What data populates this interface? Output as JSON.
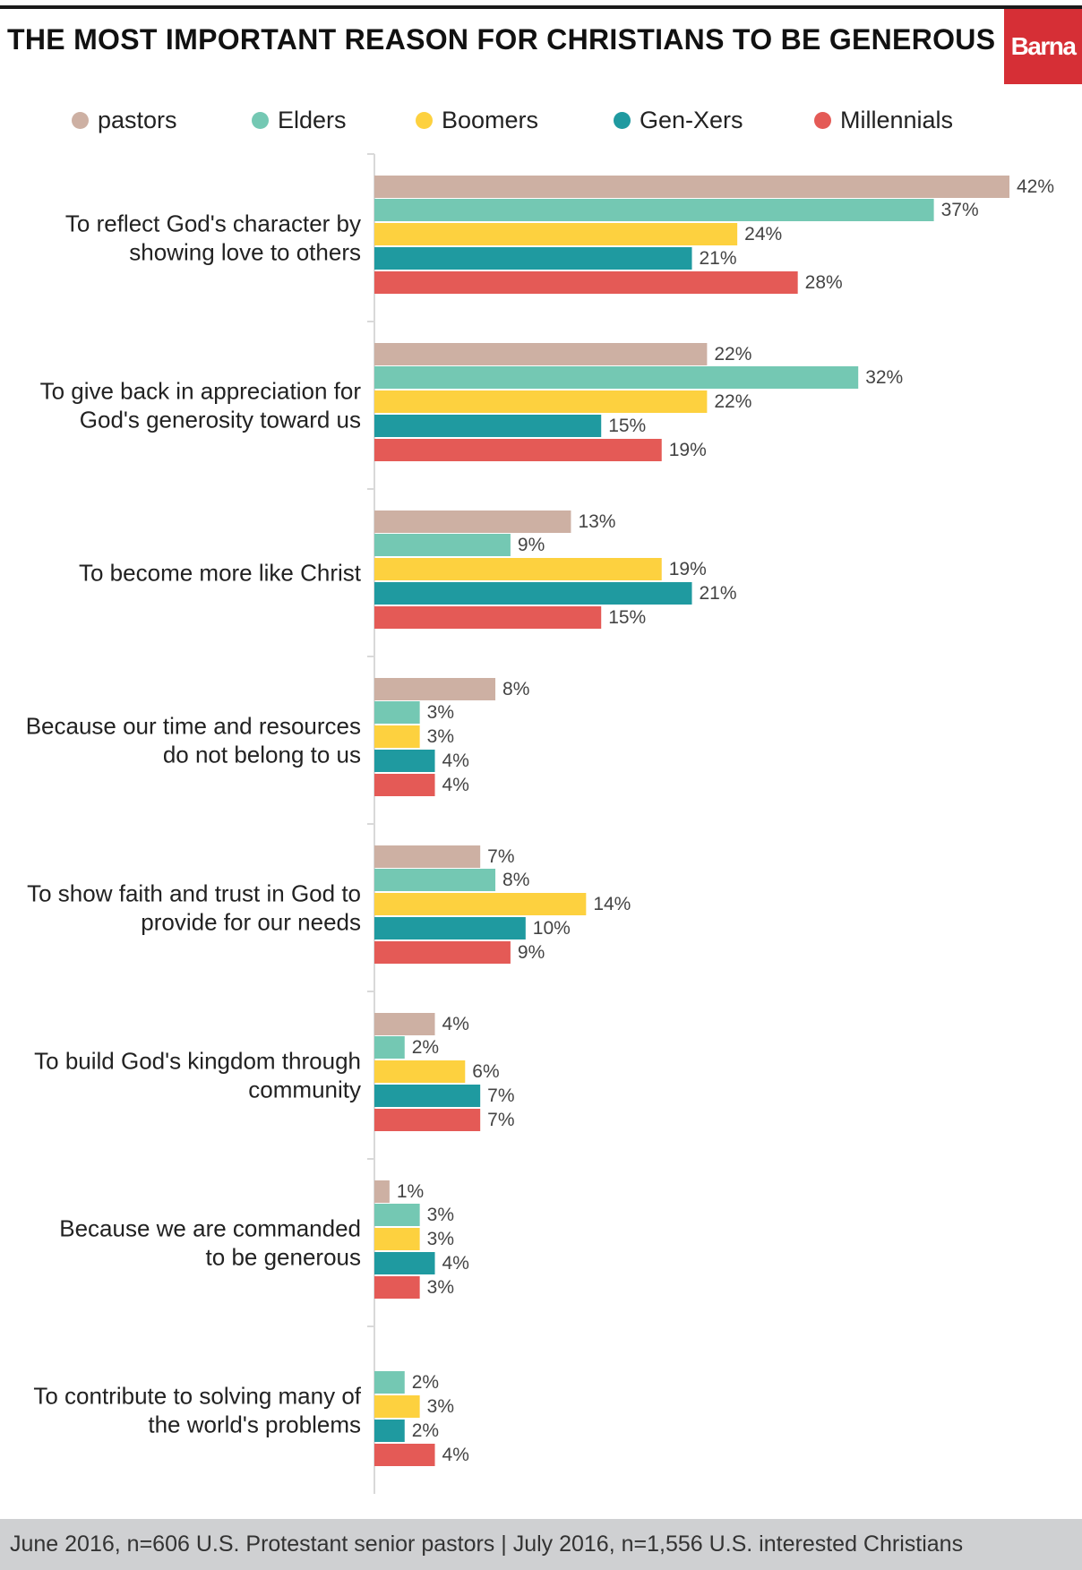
{
  "header": {
    "title": "THE MOST IMPORTANT REASON FOR CHRISTIANS TO BE GENEROUS",
    "logo_text": "Barna"
  },
  "legend": {
    "items": [
      {
        "label": "pastors",
        "color": "#cdb0a3"
      },
      {
        "label": "Elders",
        "color": "#74c8b3"
      },
      {
        "label": "Boomers",
        "color": "#fdd13f"
      },
      {
        "label": "Gen-Xers",
        "color": "#1f9aa0"
      },
      {
        "label": "Millennials",
        "color": "#e45a56"
      }
    ]
  },
  "chart_data": {
    "type": "bar",
    "orientation": "horizontal",
    "categories": [
      [
        "To reflect God's character by",
        "showing love to others"
      ],
      [
        "To give back in appreciation for",
        "God's generosity toward us"
      ],
      [
        "To become more like Christ"
      ],
      [
        "Because our time and resources",
        "do not belong to us"
      ],
      [
        "To show faith and trust in God to",
        "provide for our needs"
      ],
      [
        "To build God's kingdom through",
        "community"
      ],
      [
        "Because we are commanded",
        "to be generous"
      ],
      [
        "To contribute to solving many of",
        "the world's problems"
      ]
    ],
    "series": [
      {
        "name": "pastors",
        "color": "#cdb0a3",
        "values": [
          42,
          22,
          13,
          8,
          7,
          4,
          1,
          null
        ]
      },
      {
        "name": "Elders",
        "color": "#74c8b3",
        "values": [
          37,
          32,
          9,
          3,
          8,
          2,
          3,
          2
        ]
      },
      {
        "name": "Boomers",
        "color": "#fdd13f",
        "values": [
          24,
          22,
          19,
          3,
          14,
          6,
          3,
          3
        ]
      },
      {
        "name": "Gen-Xers",
        "color": "#1f9aa0",
        "values": [
          21,
          15,
          21,
          4,
          10,
          7,
          4,
          2
        ]
      },
      {
        "name": "Millennials",
        "color": "#e45a56",
        "values": [
          28,
          19,
          15,
          4,
          9,
          7,
          3,
          4
        ]
      }
    ],
    "value_suffix": "%",
    "xlim": [
      0,
      42
    ],
    "grid": false,
    "legend_position": "top"
  },
  "footer": {
    "source_text": "June 2016, n=606 U.S. Protestant senior pastors | July 2016, n=1,556 U.S. interested Christians"
  }
}
